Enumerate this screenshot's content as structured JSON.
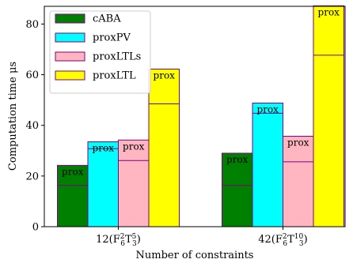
{
  "chart_data": {
    "type": "bar",
    "xlabel": "Number of constraints",
    "ylabel": "Computation time μs",
    "ylim": [
      0,
      87
    ],
    "yticks": [
      0,
      20,
      40,
      60,
      80
    ],
    "grid": false,
    "legend_position": "top-left",
    "categories": [
      {
        "base": "12(F",
        "sub1": "6",
        "sup1": "2",
        "mid": "T",
        "sub2": "3",
        "sup2": "5",
        "tail": ")"
      },
      {
        "base": "42(F",
        "sub1": "6",
        "sup1": "2",
        "mid": "T",
        "sub2": "3",
        "sup2": "10",
        "tail": ")"
      }
    ],
    "segment_label": "prox",
    "series": [
      {
        "name": "cABA",
        "color": "#008000",
        "values": [
          24.2,
          29.0
        ],
        "split": [
          16.3,
          16.3
        ]
      },
      {
        "name": "proxPV",
        "color": "#00ffff",
        "values": [
          33.5,
          48.8
        ],
        "split": [
          30.8,
          44.8
        ]
      },
      {
        "name": "proxLTLs",
        "color": "#ffb6c1",
        "values": [
          34.2,
          35.7
        ],
        "split": [
          26.1,
          25.6
        ]
      },
      {
        "name": "proxLTL",
        "color": "#ffff00",
        "values": [
          62.2,
          87.2
        ],
        "split": [
          48.5,
          67.7
        ]
      }
    ],
    "edge_color": "#800080"
  }
}
